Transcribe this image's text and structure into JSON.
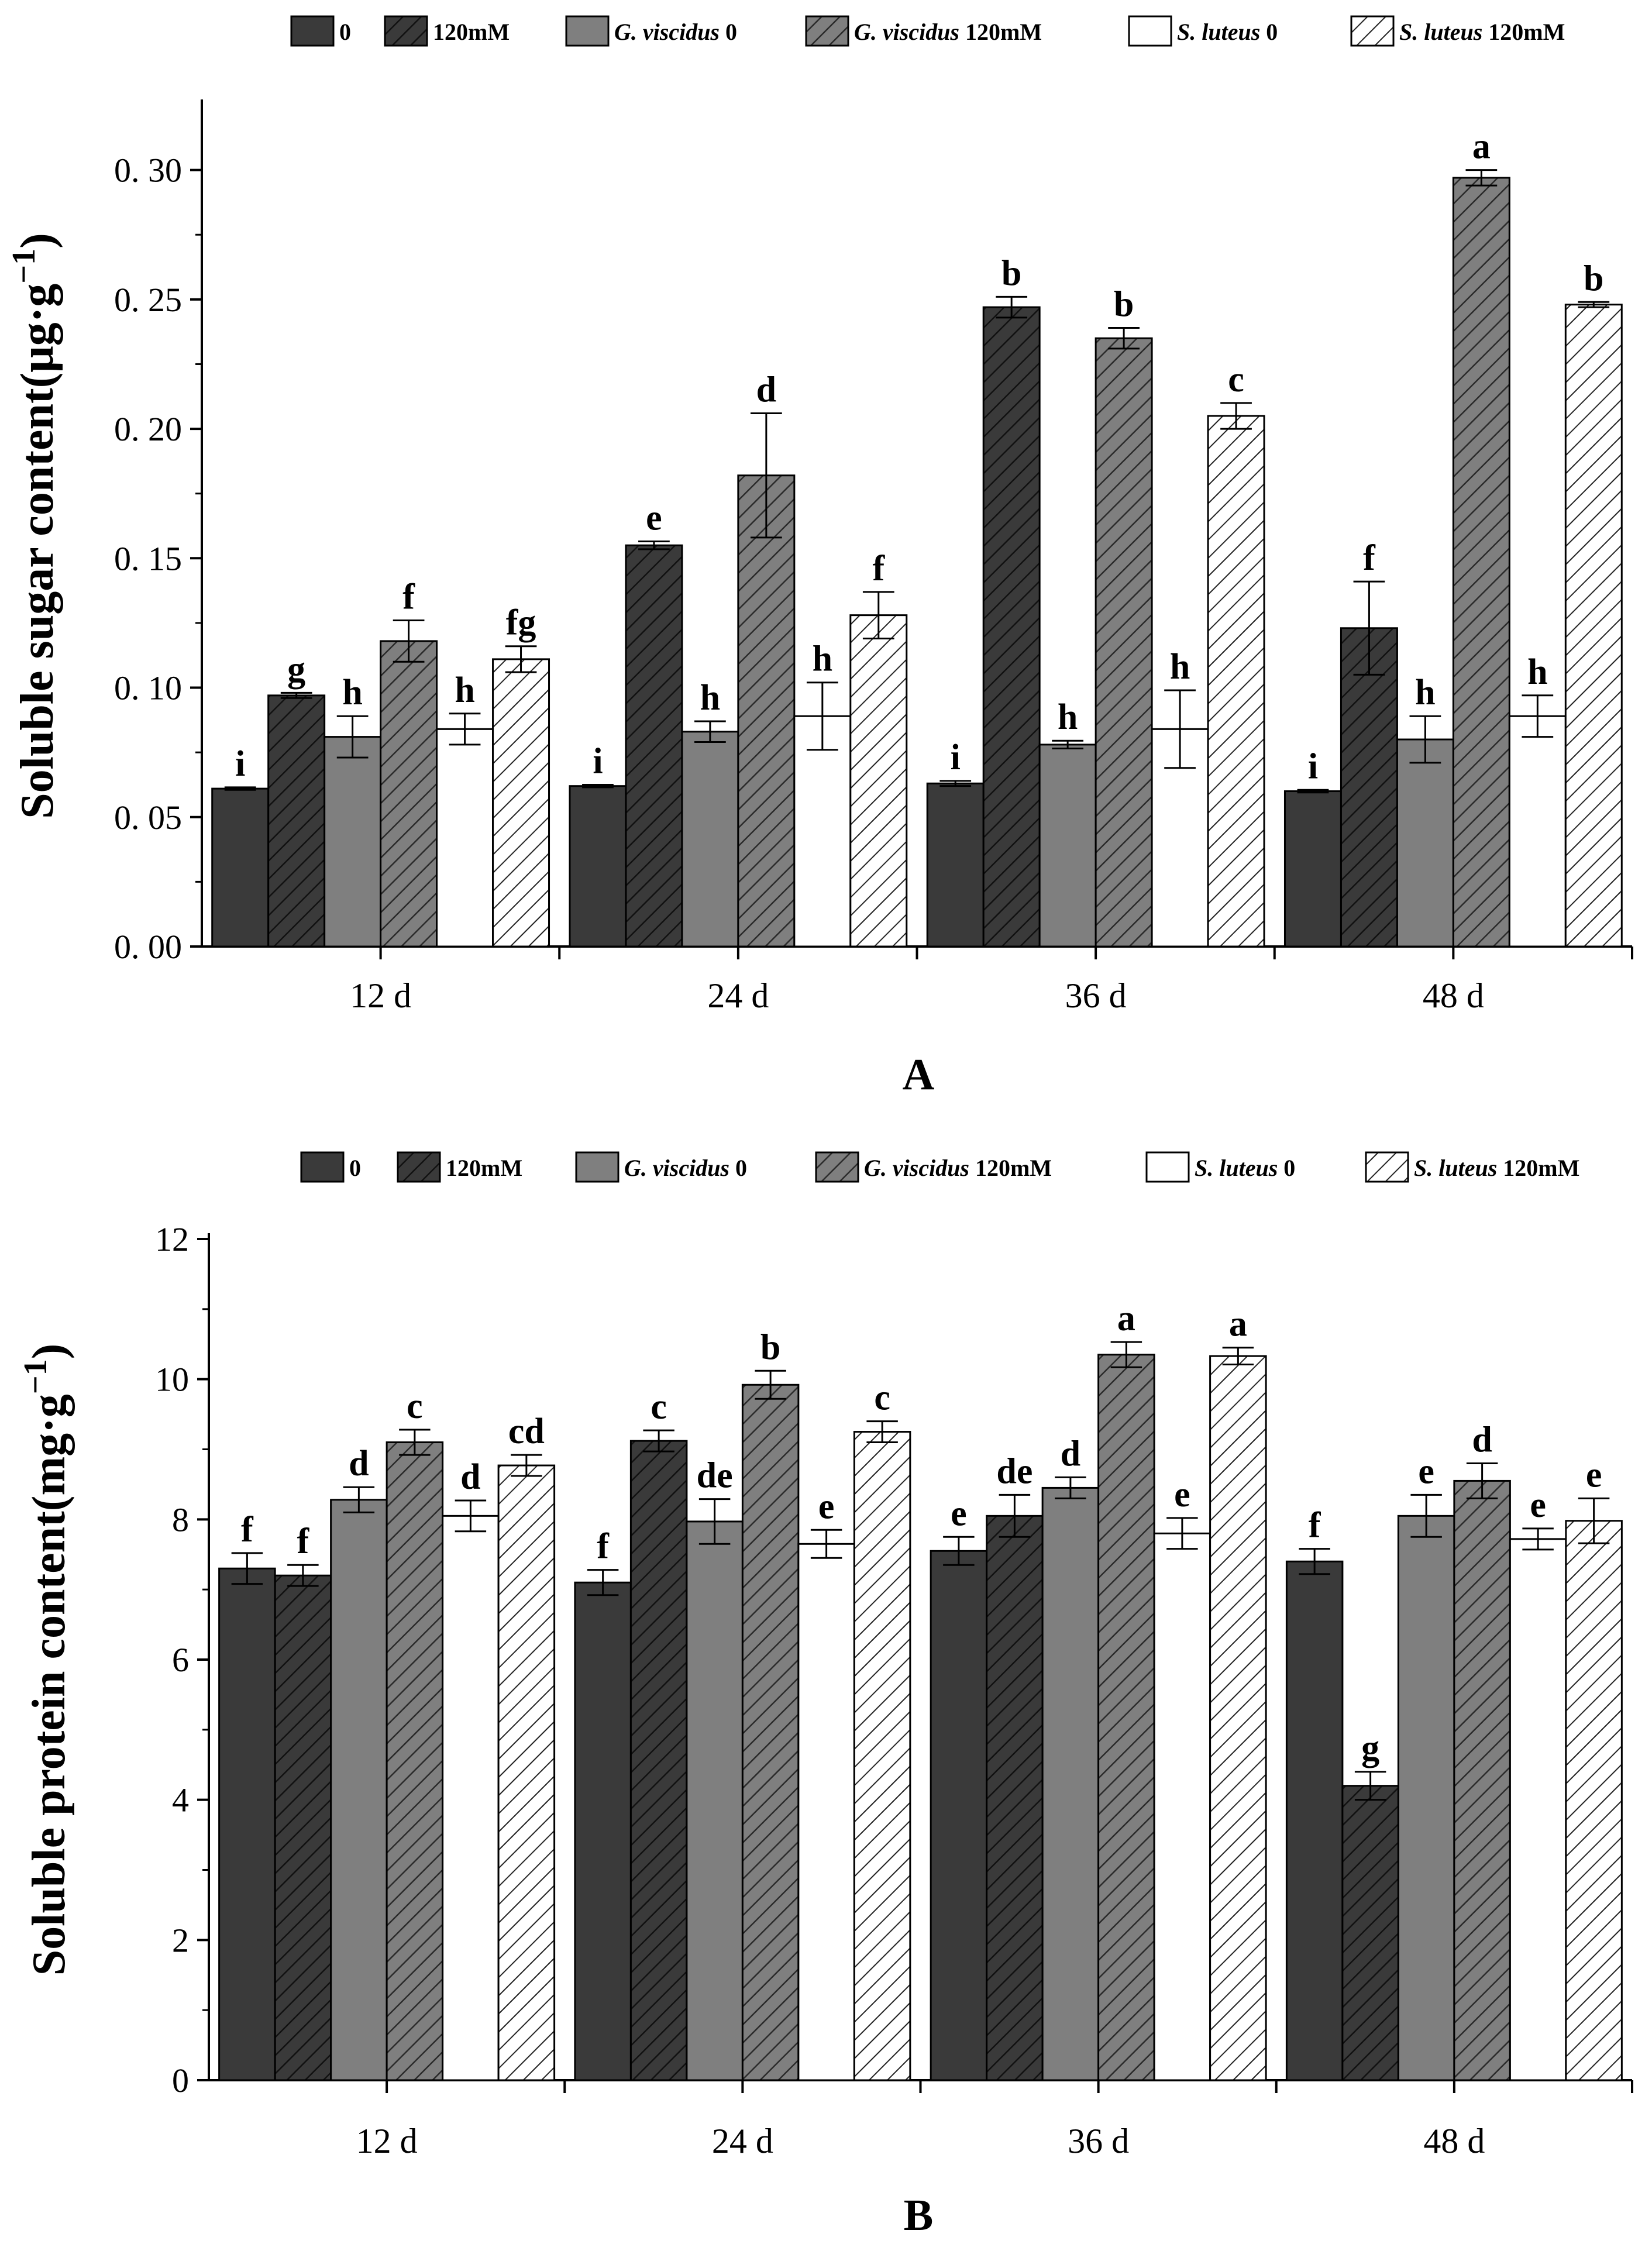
{
  "legend": [
    {
      "label": "0",
      "italic": "",
      "fill": "#3a3a3a",
      "hatch": false
    },
    {
      "label": "120mM",
      "italic": "",
      "fill": "#3a3a3a",
      "hatch": true
    },
    {
      "label": " 0",
      "italic": "G. viscidus",
      "fill": "#7f7f7f",
      "hatch": false
    },
    {
      "label": " 120mM",
      "italic": "G. viscidus",
      "fill": "#7f7f7f",
      "hatch": true
    },
    {
      "label": " 0",
      "italic": "S. luteus",
      "fill": "#ffffff",
      "hatch": false
    },
    {
      "label": " 120mM",
      "italic": "S. luteus",
      "fill": "#ffffff",
      "hatch": true
    }
  ],
  "chart_data": [
    {
      "type": "bar",
      "panel": "A",
      "ylabel": "Soluble sugar content(μg·g",
      "ylabel_sup": "−1",
      "ylabel_close": ")",
      "categories": [
        "12  d",
        "24  d",
        "36  d",
        "48  d"
      ],
      "ylim": [
        0,
        0.325
      ],
      "yticks": [
        0.0,
        0.05,
        0.1,
        0.15,
        0.2,
        0.25,
        0.3
      ],
      "ytick_labels": [
        "0. 00",
        "0. 05",
        "0. 10",
        "0. 15",
        "0. 20",
        "0. 25",
        "0. 30"
      ],
      "series": [
        {
          "name": "0",
          "values": [
            0.061,
            0.062,
            0.063,
            0.06
          ],
          "errors": [
            0.0005,
            0.0005,
            0.001,
            0.0005
          ],
          "letters": [
            "i",
            "i",
            "i",
            "i"
          ]
        },
        {
          "name": "120mM",
          "values": [
            0.097,
            0.155,
            0.247,
            0.123
          ],
          "errors": [
            0.001,
            0.0015,
            0.004,
            0.018
          ],
          "letters": [
            "g",
            "e",
            "b",
            "f"
          ]
        },
        {
          "name": "G. viscidus 0",
          "values": [
            0.081,
            0.083,
            0.078,
            0.08
          ],
          "errors": [
            0.008,
            0.004,
            0.0015,
            0.009
          ],
          "letters": [
            "h",
            "h",
            "h",
            "h"
          ]
        },
        {
          "name": "G. viscidus 120mM",
          "values": [
            0.118,
            0.182,
            0.235,
            0.297
          ],
          "errors": [
            0.008,
            0.024,
            0.004,
            0.003
          ],
          "letters": [
            "f",
            "d",
            "b",
            "a"
          ]
        },
        {
          "name": "S. luteus 0",
          "values": [
            0.084,
            0.089,
            0.084,
            0.089
          ],
          "errors": [
            0.006,
            0.013,
            0.015,
            0.008
          ],
          "letters": [
            "h",
            "h",
            "h",
            "h"
          ]
        },
        {
          "name": "S. luteus 120mM",
          "values": [
            0.111,
            0.128,
            0.205,
            0.248
          ],
          "errors": [
            0.005,
            0.009,
            0.005,
            0.001
          ],
          "letters": [
            "fg",
            "f",
            "c",
            "b"
          ]
        }
      ],
      "panel_label": "A"
    },
    {
      "type": "bar",
      "panel": "B",
      "ylabel": "Soluble protein content(mg·g",
      "ylabel_sup": "−1",
      "ylabel_close": ")",
      "categories": [
        "12  d",
        "24  d",
        "36  d",
        "48  d"
      ],
      "ylim": [
        0,
        12
      ],
      "yticks": [
        0,
        2,
        4,
        6,
        8,
        10,
        12
      ],
      "ytick_labels": [
        "0",
        "2",
        "4",
        "6",
        "8",
        "10",
        "12"
      ],
      "series": [
        {
          "name": "0",
          "values": [
            7.3,
            7.1,
            7.55,
            7.4
          ],
          "errors": [
            0.22,
            0.18,
            0.2,
            0.18
          ],
          "letters": [
            "f",
            "f",
            "e",
            "f"
          ]
        },
        {
          "name": "120mM",
          "values": [
            7.2,
            9.12,
            8.05,
            4.2
          ],
          "errors": [
            0.15,
            0.15,
            0.3,
            0.2
          ],
          "letters": [
            "f",
            "c",
            "de",
            "g"
          ]
        },
        {
          "name": "G. viscidus 0",
          "values": [
            8.28,
            7.97,
            8.45,
            8.05
          ],
          "errors": [
            0.18,
            0.32,
            0.15,
            0.3
          ],
          "letters": [
            "d",
            "de",
            "d",
            "e"
          ]
        },
        {
          "name": "G. viscidus 120mM",
          "values": [
            9.1,
            9.92,
            10.35,
            8.55
          ],
          "errors": [
            0.18,
            0.2,
            0.18,
            0.25
          ],
          "letters": [
            "c",
            "b",
            "a",
            "d"
          ]
        },
        {
          "name": "S. luteus 0",
          "values": [
            8.05,
            7.65,
            7.8,
            7.72
          ],
          "errors": [
            0.22,
            0.2,
            0.22,
            0.15
          ],
          "letters": [
            "d",
            "e",
            "e",
            "e"
          ]
        },
        {
          "name": "S. luteus 120mM",
          "values": [
            8.77,
            9.25,
            10.33,
            7.98
          ],
          "errors": [
            0.15,
            0.15,
            0.12,
            0.32
          ],
          "letters": [
            "cd",
            "c",
            "a",
            "e"
          ]
        }
      ],
      "panel_label": "B"
    }
  ]
}
